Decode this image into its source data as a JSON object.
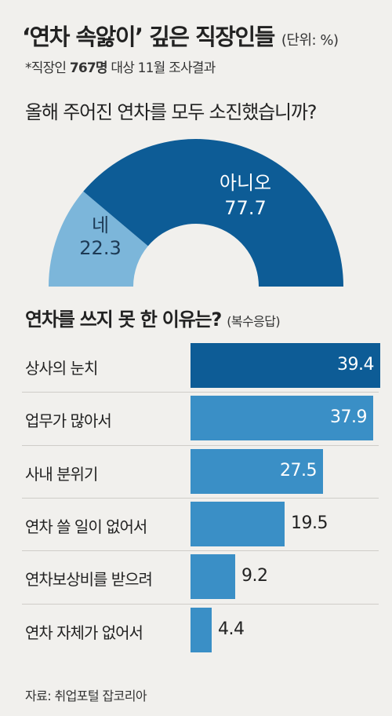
{
  "header": {
    "title": "‘연차 속앓이’ 깊은 직장인들",
    "unit": "(단위: %)",
    "subtitle_prefix": "*직장인 ",
    "subtitle_bold": "767명",
    "subtitle_suffix": " 대상 11월 조사결과"
  },
  "colors": {
    "background": "#f1f0ed",
    "dark_blue": "#0d5c96",
    "mid_blue": "#3a8fc6",
    "light_blue": "#7cb6da"
  },
  "source": "자료: 취업포털 잡코리아",
  "chart_data": [
    {
      "type": "pie",
      "style": "half-donut",
      "title": "올해 주어진 연차를 모두 소진했습니까?",
      "slices": [
        {
          "label": "네",
          "value": 22.3,
          "value_text": "22.3"
        },
        {
          "label": "아니오",
          "value": 77.7,
          "value_text": "77.7"
        }
      ]
    },
    {
      "type": "bar",
      "orientation": "horizontal",
      "title": "연차를 쓰지 못 한 이유는?",
      "note": "(복수응답)",
      "categories": [
        "상사의 눈치",
        "업무가 많아서",
        "사내 분위기",
        "연차 쓸 일이 없어서",
        "연차보상비를 받으려",
        "연차 자체가 없어서"
      ],
      "values": [
        39.4,
        37.9,
        27.5,
        19.5,
        9.2,
        4.4
      ],
      "value_texts": [
        "39.4",
        "37.9",
        "27.5",
        "19.5",
        "9.2",
        "4.4"
      ],
      "xlim": [
        0,
        39.4
      ],
      "highlight_index": 0
    }
  ]
}
